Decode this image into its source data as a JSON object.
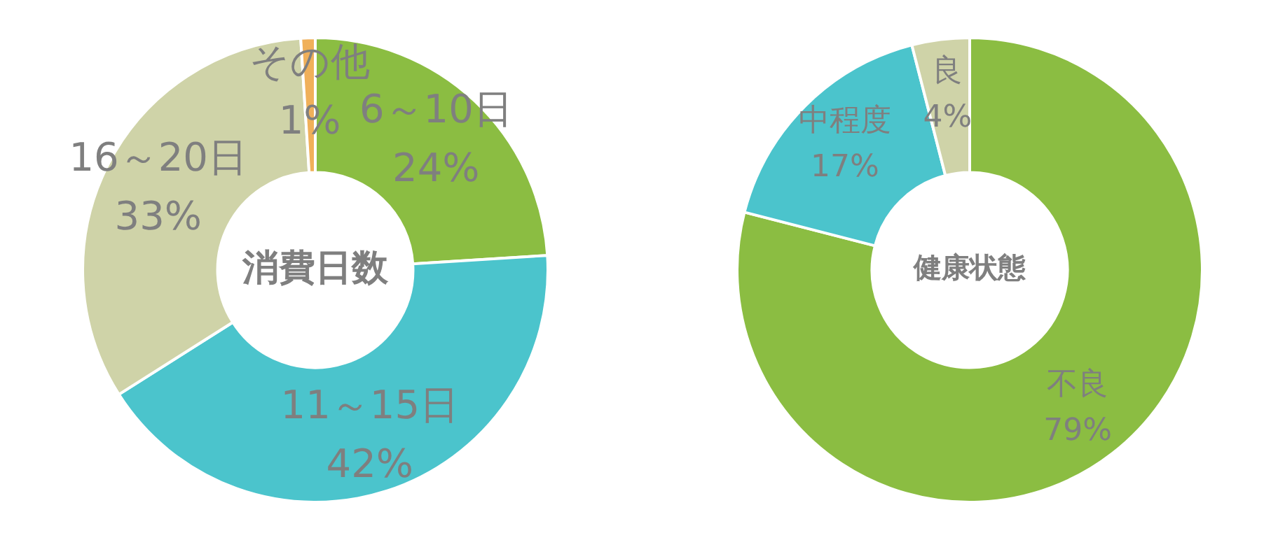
{
  "chart_data": [
    {
      "type": "donut",
      "title": "消費日数",
      "categories": [
        "6～10日",
        "11～15日",
        "16～20日",
        "その他"
      ],
      "values": [
        24,
        42,
        33,
        1
      ],
      "colors": [
        "#8bbd42",
        "#4bc4cc",
        "#cfd3a8",
        "#f0b05a"
      ],
      "value_labels": [
        "24%",
        "42%",
        "33%",
        "1%"
      ]
    },
    {
      "type": "donut",
      "title": "健康状態",
      "categories": [
        "不良",
        "中程度",
        "良"
      ],
      "values": [
        79,
        17,
        4
      ],
      "colors": [
        "#8bbd42",
        "#4bc4cc",
        "#cfd3a8"
      ],
      "value_labels": [
        "79%",
        "17%",
        "4%"
      ]
    }
  ]
}
